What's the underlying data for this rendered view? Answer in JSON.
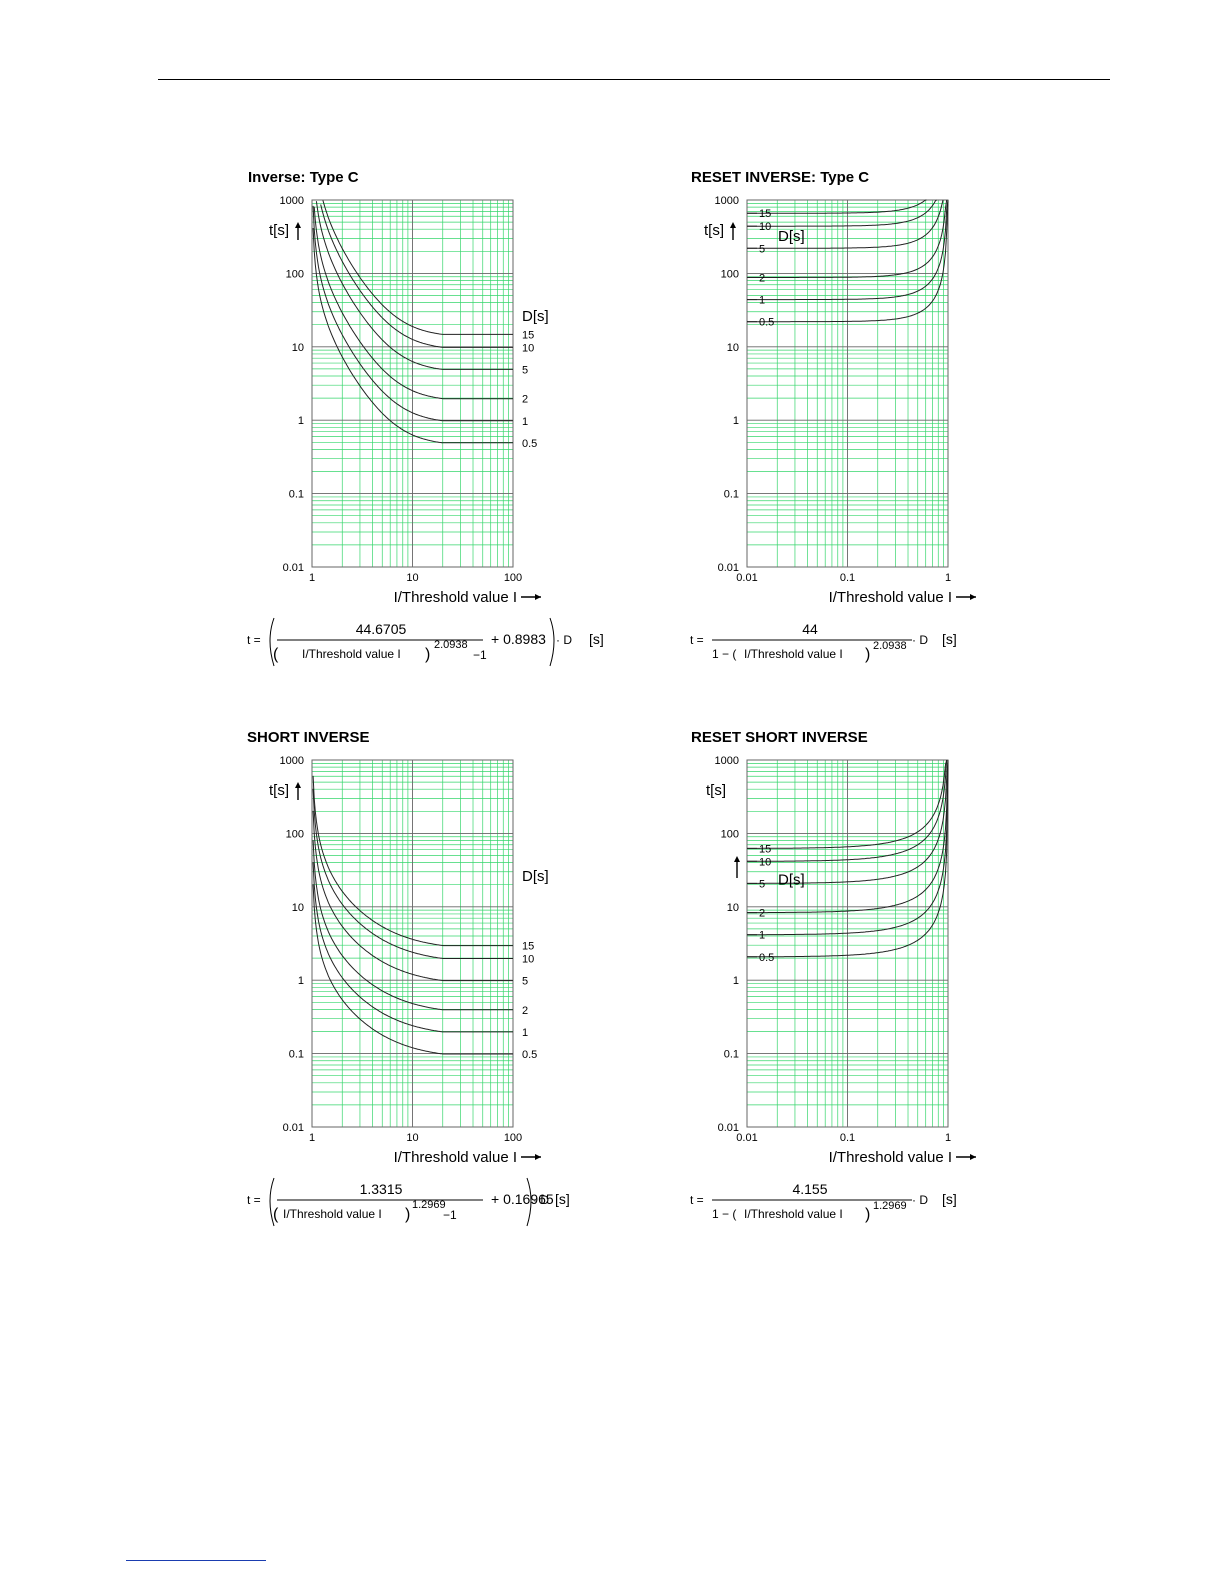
{
  "page": {},
  "charts": [
    {
      "id": "inverse-type-c",
      "kind": "inverse",
      "title": "Inverse: Type C",
      "xlabel": "I/Threshold value I",
      "ylabel": "t[s]",
      "dlabel": "D[s]",
      "xticks": [
        "1",
        "10",
        "100"
      ],
      "yticks": [
        "1000",
        "100",
        "10",
        "1",
        "0.1",
        "0.01"
      ],
      "formula": {
        "numerator": "44.6705",
        "base": "I/Threshold value I",
        "exponent": "2.0938",
        "minus": "−1",
        "plus": "+ 0.8983",
        "dot": "· D",
        "unit": "[s]",
        "lhs": "t ="
      }
    },
    {
      "id": "reset-inverse-type-c",
      "kind": "reset",
      "title": "RESET INVERSE: Type C",
      "xlabel": "I/Threshold value I",
      "ylabel": "t[s]",
      "dlabel": "D[s]",
      "xticks": [
        "0.01",
        "0.1",
        "1"
      ],
      "yticks": [
        "1000",
        "100",
        "10",
        "1",
        "0.1",
        "0.01"
      ],
      "formula": {
        "numerator": "44",
        "base": "I/Threshold value I",
        "exponent": "2.0938",
        "one_minus": "1 − (",
        "dot": "· D",
        "unit": "[s]",
        "lhs": "t ="
      }
    },
    {
      "id": "short-inverse",
      "kind": "inverse",
      "title": "SHORT INVERSE",
      "xlabel": "I/Threshold value I",
      "ylabel": "t[s]",
      "dlabel": "D[s]",
      "xticks": [
        "1",
        "10",
        "100"
      ],
      "yticks": [
        "1000",
        "100",
        "10",
        "1",
        "0.1",
        "0.01"
      ],
      "formula": {
        "numerator": "1.3315",
        "base": "I/Threshold value I",
        "exponent": "1.2969",
        "minus": "−1",
        "plus": "+ 0.16965",
        "dot": "· D",
        "unit": "[s]",
        "lhs": "t ="
      }
    },
    {
      "id": "reset-short-inverse",
      "kind": "reset",
      "title": "RESET SHORT INVERSE",
      "xlabel": "I/Threshold value I",
      "ylabel": "t[s]",
      "dlabel": "D[s]",
      "xticks": [
        "0.01",
        "0.1",
        "1"
      ],
      "yticks": [
        "1000",
        "100",
        "10",
        "1",
        "0.1",
        "0.01"
      ],
      "formula": {
        "numerator": "4.155",
        "base": "I/Threshold value I",
        "exponent": "1.2969",
        "one_minus": "1 − (",
        "dot": "· D",
        "unit": "[s]",
        "lhs": "t ="
      }
    }
  ],
  "chart_data": [
    {
      "type": "line",
      "title": "Inverse: Type C",
      "xlabel": "I/Threshold value I",
      "ylabel": "t[s]",
      "xscale": "log",
      "yscale": "log",
      "xlim": [
        1,
        100
      ],
      "ylim": [
        0.01,
        1000
      ],
      "curve_end_x": 20,
      "A": 44.6705,
      "p": 2.0938,
      "B": 0.8983,
      "series": [
        {
          "name": "15",
          "D": 15
        },
        {
          "name": "10",
          "D": 10
        },
        {
          "name": "5",
          "D": 5
        },
        {
          "name": "2",
          "D": 2
        },
        {
          "name": "1",
          "D": 1
        },
        {
          "name": "0.5",
          "D": 0.5
        }
      ]
    },
    {
      "type": "line",
      "title": "RESET INVERSE: Type C",
      "xlabel": "I/Threshold value I",
      "ylabel": "t[s]",
      "xscale": "log",
      "yscale": "log",
      "xlim": [
        0.01,
        1
      ],
      "ylim": [
        0.01,
        1000
      ],
      "A": 44,
      "p": 2.0938,
      "series": [
        {
          "name": "15",
          "D": 15
        },
        {
          "name": "10",
          "D": 10
        },
        {
          "name": "5",
          "D": 5
        },
        {
          "name": "2",
          "D": 2
        },
        {
          "name": "1",
          "D": 1
        },
        {
          "name": "0.5",
          "D": 0.5
        }
      ]
    },
    {
      "type": "line",
      "title": "SHORT INVERSE",
      "xlabel": "I/Threshold value I",
      "ylabel": "t[s]",
      "xscale": "log",
      "yscale": "log",
      "xlim": [
        1,
        100
      ],
      "ylim": [
        0.01,
        1000
      ],
      "curve_end_x": 20,
      "A": 1.3315,
      "p": 1.2969,
      "B": 0.16965,
      "series": [
        {
          "name": "15",
          "D": 15
        },
        {
          "name": "10",
          "D": 10
        },
        {
          "name": "5",
          "D": 5
        },
        {
          "name": "2",
          "D": 2
        },
        {
          "name": "1",
          "D": 1
        },
        {
          "name": "0.5",
          "D": 0.5
        }
      ]
    },
    {
      "type": "line",
      "title": "RESET SHORT INVERSE",
      "xlabel": "I/Threshold value I",
      "ylabel": "t[s]",
      "xscale": "log",
      "yscale": "log",
      "xlim": [
        0.01,
        1
      ],
      "ylim": [
        0.01,
        1000
      ],
      "A": 4.155,
      "p": 1.2969,
      "series": [
        {
          "name": "15",
          "D": 15
        },
        {
          "name": "10",
          "D": 10
        },
        {
          "name": "5",
          "D": 5
        },
        {
          "name": "2",
          "D": 2
        },
        {
          "name": "1",
          "D": 1
        },
        {
          "name": "0.5",
          "D": 0.5
        }
      ]
    }
  ]
}
